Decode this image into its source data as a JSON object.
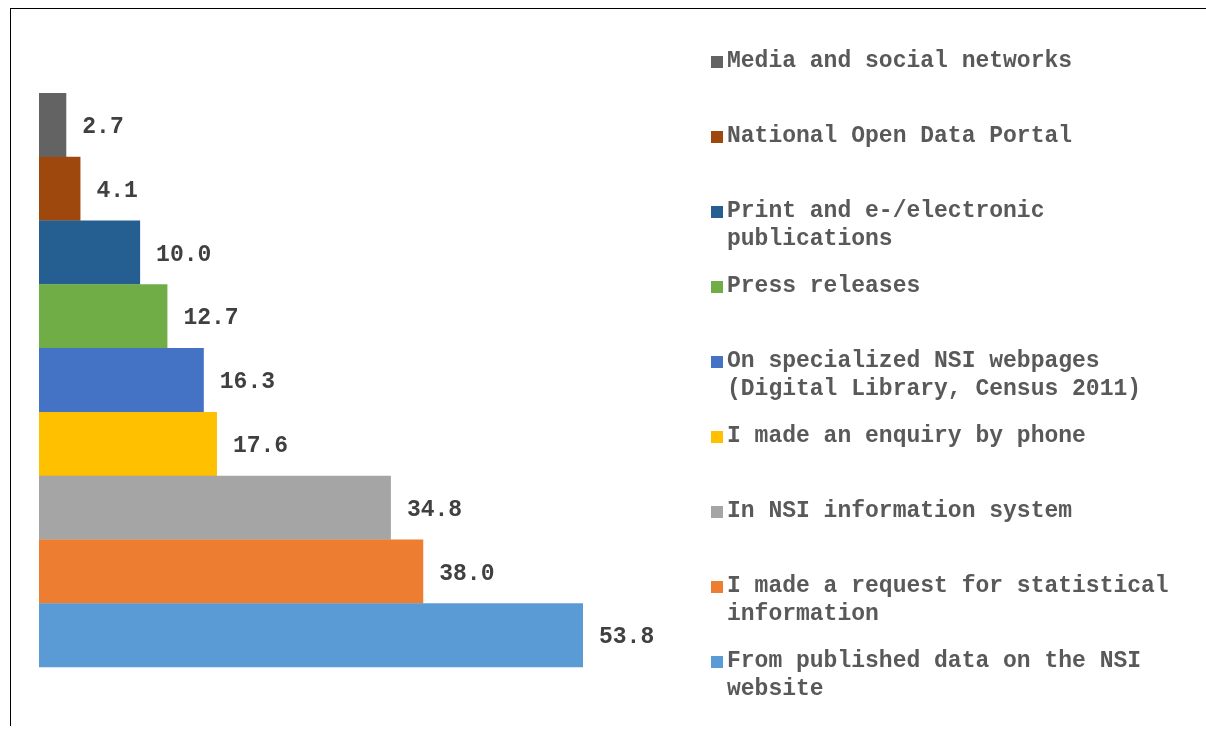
{
  "chart_data": {
    "type": "bar",
    "orientation": "horizontal",
    "stacked": true,
    "legend": "right",
    "categories": [
      null,
      null,
      null,
      null,
      null,
      null,
      null,
      null,
      null
    ],
    "series": [
      {
        "name": "Media and social networks",
        "color": "#636363",
        "values": [
          2.7,
          null,
          null,
          null,
          null,
          null,
          null,
          null,
          null
        ],
        "value_labels": [
          "2.7",
          null,
          null,
          null,
          null,
          null,
          null,
          null,
          null
        ]
      },
      {
        "name": "National Open Data Portal",
        "color": "#9e480e",
        "values": [
          null,
          4.1,
          null,
          null,
          null,
          null,
          null,
          null,
          null
        ],
        "value_labels": [
          null,
          "4.1",
          null,
          null,
          null,
          null,
          null,
          null,
          null
        ]
      },
      {
        "name": "Print and e-/electronic publications",
        "color": "#255e91",
        "values": [
          null,
          null,
          10.0,
          null,
          null,
          null,
          null,
          null,
          null
        ],
        "value_labels": [
          null,
          null,
          "10.0",
          null,
          null,
          null,
          null,
          null,
          null
        ]
      },
      {
        "name": "Press releases",
        "color": "#70ad47",
        "values": [
          null,
          null,
          null,
          12.7,
          null,
          null,
          null,
          null,
          null
        ],
        "value_labels": [
          null,
          null,
          null,
          "12.7",
          null,
          null,
          null,
          null,
          null
        ]
      },
      {
        "name": "On specialized NSI webpages (Digital Library, Census 2011)",
        "color": "#4472c4",
        "values": [
          null,
          null,
          null,
          null,
          16.3,
          null,
          null,
          null,
          null
        ],
        "value_labels": [
          null,
          null,
          null,
          null,
          "16.3",
          null,
          null,
          null,
          null
        ]
      },
      {
        "name": "I made an enquiry by phone",
        "color": "#ffc000",
        "values": [
          null,
          null,
          null,
          null,
          null,
          17.6,
          null,
          null,
          null
        ],
        "value_labels": [
          null,
          null,
          null,
          null,
          null,
          "17.6",
          null,
          null,
          null
        ]
      },
      {
        "name": "In NSI information system",
        "color": "#a5a5a5",
        "values": [
          null,
          null,
          null,
          null,
          null,
          null,
          34.8,
          null,
          null
        ],
        "value_labels": [
          null,
          null,
          null,
          null,
          null,
          null,
          "34.8",
          null,
          null
        ]
      },
      {
        "name": "I made a request for statistical information",
        "color": "#ed7d31",
        "values": [
          null,
          null,
          null,
          null,
          null,
          null,
          null,
          38.0,
          null
        ],
        "value_labels": [
          null,
          null,
          null,
          null,
          null,
          null,
          null,
          "38.0",
          null
        ]
      },
      {
        "name": "From published data on the NSI website",
        "color": "#5b9bd5",
        "values": [
          null,
          null,
          null,
          null,
          null,
          null,
          null,
          null,
          53.8
        ],
        "value_labels": [
          null,
          null,
          null,
          null,
          null,
          null,
          null,
          null,
          "53.8"
        ]
      }
    ]
  }
}
